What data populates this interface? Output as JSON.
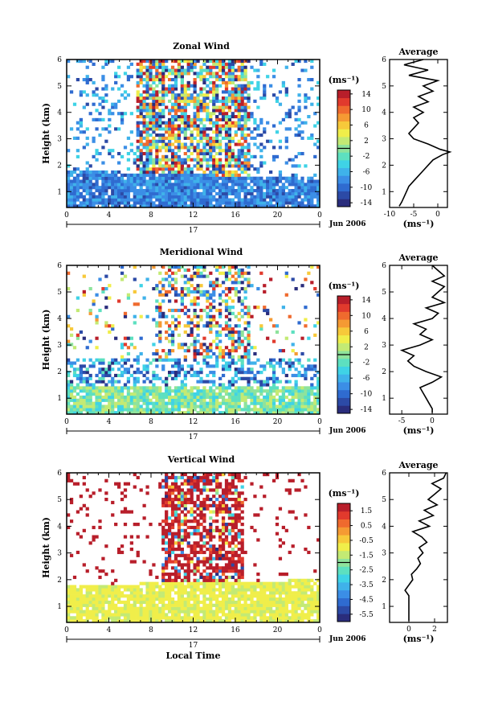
{
  "chart_data": [
    {
      "type": "heatmap",
      "title": "Zonal Wind",
      "ylabel": "Height (km)",
      "xlim": [
        0,
        24
      ],
      "ylim": [
        0.4,
        6
      ],
      "x_ticks": [
        "0",
        "4",
        "8",
        "12",
        "16",
        "20",
        "0"
      ],
      "y_ticks": [
        "1",
        "2",
        "3",
        "4",
        "5",
        "6"
      ],
      "date_label": "17",
      "date_suffix": "Jun 2006",
      "xlabel": "",
      "colorbar": {
        "unit": "(ms⁻¹)",
        "range": [
          -15,
          15
        ],
        "tick_labels": [
          "14",
          "10",
          "6",
          "2",
          "-2",
          "-6",
          "-10",
          "-14"
        ],
        "tick_values": [
          14,
          10,
          6,
          2,
          -2,
          -6,
          -10,
          -14
        ]
      },
      "average_profile": {
        "title": "Average",
        "xlabel": "(ms⁻¹)",
        "x_ticks": [
          "-10",
          "-5",
          "0"
        ],
        "x_tick_values": [
          -10,
          -5,
          0
        ],
        "xlim": [
          -10,
          2
        ],
        "height": [
          0.45,
          0.6,
          0.8,
          1.0,
          1.2,
          1.4,
          1.6,
          1.8,
          2.0,
          2.2,
          2.4,
          2.5,
          2.6,
          2.8,
          3.0,
          3.2,
          3.4,
          3.6,
          3.8,
          4.0,
          4.2,
          4.4,
          4.6,
          4.8,
          5.0,
          5.2,
          5.4,
          5.6,
          5.8,
          6.0
        ],
        "value": [
          -8,
          -7.5,
          -7,
          -6.5,
          -6,
          -5,
          -4,
          -3,
          -2,
          -1,
          1,
          2.5,
          0.5,
          -2,
          -5,
          -6,
          -5,
          -4,
          -5,
          -3,
          -5,
          -2,
          -4,
          -1,
          -3,
          0,
          -6,
          -2,
          -7,
          -3
        ]
      }
    },
    {
      "type": "heatmap",
      "title": "Meridional Wind",
      "ylabel": "Height (km)",
      "xlim": [
        0,
        24
      ],
      "ylim": [
        0.4,
        6
      ],
      "x_ticks": [
        "0",
        "4",
        "8",
        "12",
        "16",
        "20",
        "0"
      ],
      "y_ticks": [
        "1",
        "2",
        "3",
        "4",
        "5",
        "6"
      ],
      "date_label": "17",
      "date_suffix": "Jun 2006",
      "xlabel": "",
      "colorbar": {
        "unit": "(ms⁻¹)",
        "range": [
          -15,
          15
        ],
        "tick_labels": [
          "14",
          "10",
          "6",
          "2",
          "-2",
          "-6",
          "-10",
          "-14"
        ],
        "tick_values": [
          14,
          10,
          6,
          2,
          -2,
          -6,
          -10,
          -14
        ]
      },
      "average_profile": {
        "title": "Average",
        "xlabel": "(ms⁻¹)",
        "x_ticks": [
          "-5",
          "0"
        ],
        "x_tick_values": [
          -5,
          0
        ],
        "xlim": [
          -7,
          2.5
        ],
        "height": [
          0.45,
          0.6,
          0.8,
          1.0,
          1.2,
          1.4,
          1.6,
          1.8,
          2.0,
          2.2,
          2.4,
          2.6,
          2.8,
          3.0,
          3.2,
          3.4,
          3.6,
          3.8,
          4.0,
          4.2,
          4.4,
          4.6,
          4.8,
          5.0,
          5.2,
          5.4,
          5.6,
          5.8,
          6.0
        ],
        "value": [
          0,
          0,
          -0.5,
          -1,
          -1.5,
          -2,
          0,
          1.5,
          -1,
          -3,
          -4,
          -3,
          -5,
          -2,
          0,
          -2,
          -1,
          -3,
          0,
          1,
          -1,
          2,
          0,
          1,
          2,
          0,
          2,
          1,
          0
        ]
      }
    },
    {
      "type": "heatmap",
      "title": "Vertical Wind",
      "ylabel": "Height (km)",
      "xlabel": "Local Time",
      "xlim": [
        0,
        24
      ],
      "ylim": [
        0.4,
        6
      ],
      "x_ticks": [
        "0",
        "4",
        "8",
        "12",
        "16",
        "20",
        "0"
      ],
      "y_ticks": [
        "1",
        "2",
        "3",
        "4",
        "5",
        "6"
      ],
      "date_label": "17",
      "date_suffix": "Jun 2006",
      "colorbar": {
        "unit": "(ms⁻¹)",
        "range": [
          -6,
          2
        ],
        "tick_labels": [
          "1.5",
          "0.5",
          "-0.5",
          "-1.5",
          "-2.5",
          "-3.5",
          "-4.5",
          "-5.5"
        ],
        "tick_values": [
          1.5,
          0.5,
          -0.5,
          -1.5,
          -2.5,
          -3.5,
          -4.5,
          -5.5
        ]
      },
      "average_profile": {
        "title": "Average",
        "xlabel": "(ms⁻¹)",
        "x_ticks": [
          "0",
          "2"
        ],
        "x_tick_values": [
          0,
          2
        ],
        "xlim": [
          -1.5,
          3
        ],
        "height": [
          0.45,
          0.6,
          0.8,
          1.0,
          1.2,
          1.4,
          1.6,
          1.8,
          2.0,
          2.2,
          2.4,
          2.6,
          2.8,
          3.0,
          3.2,
          3.4,
          3.6,
          3.8,
          4.0,
          4.2,
          4.4,
          4.6,
          4.8,
          5.0,
          5.2,
          5.4,
          5.6,
          5.8,
          6.0
        ],
        "value": [
          0,
          0,
          0,
          0,
          0,
          0,
          -0.3,
          0,
          0.3,
          0.2,
          0.6,
          0.9,
          0.7,
          1.1,
          0.8,
          1.4,
          1.0,
          0.3,
          1.6,
          0.8,
          1.9,
          1.2,
          2.2,
          1.5,
          2.0,
          2.5,
          1.8,
          2.7,
          2.9
        ]
      }
    }
  ]
}
